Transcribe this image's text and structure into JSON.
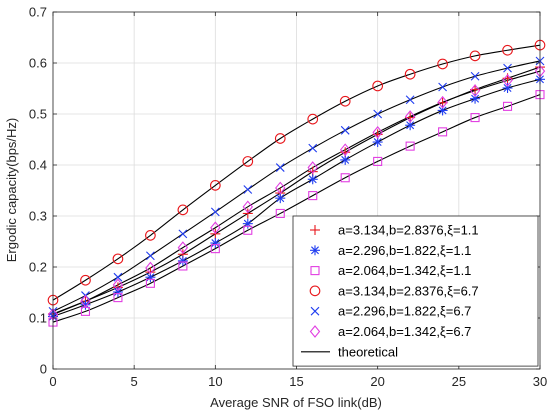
{
  "chart_data": {
    "type": "line",
    "xlabel": "Average SNR of FSO link(dB)",
    "ylabel": "Ergodic capacity(bps/Hz)",
    "xlim": [
      0,
      30
    ],
    "ylim": [
      0,
      0.7
    ],
    "xticks": [
      0,
      5,
      10,
      15,
      20,
      25,
      30
    ],
    "yticks": [
      0,
      0.1,
      0.2,
      0.3,
      0.4,
      0.5,
      0.6,
      0.7
    ],
    "grid": true,
    "legend_position": "bottom-right",
    "x": [
      0,
      2,
      4,
      6,
      8,
      10,
      12,
      14,
      16,
      18,
      20,
      22,
      24,
      26,
      28,
      30
    ],
    "series": [
      {
        "name": "a=3.134,b=2.8376,ξ=1.1",
        "marker": "plus",
        "color": "#e8161b",
        "values": [
          0.108,
          0.133,
          0.16,
          0.19,
          0.225,
          0.265,
          0.305,
          0.345,
          0.387,
          0.425,
          0.46,
          0.493,
          0.522,
          0.548,
          0.57,
          0.592
        ]
      },
      {
        "name": "a=2.296,b=1.822,ξ=1.1",
        "marker": "asterisk",
        "color": "#1f3cf0",
        "values": [
          0.103,
          0.126,
          0.151,
          0.18,
          0.212,
          0.247,
          0.285,
          0.335,
          0.372,
          0.41,
          0.445,
          0.478,
          0.507,
          0.53,
          0.551,
          0.568
        ]
      },
      {
        "name": "a=2.064,b=1.342,ξ=1.1",
        "marker": "square",
        "color": "#e23ee2",
        "values": [
          0.092,
          0.113,
          0.14,
          0.168,
          0.202,
          0.236,
          0.272,
          0.305,
          0.34,
          0.375,
          0.407,
          0.437,
          0.465,
          0.493,
          0.515,
          0.538
        ]
      },
      {
        "name": "a=3.134,b=2.8376,ξ=6.7",
        "marker": "circle",
        "color": "#e8161b",
        "values": [
          0.135,
          0.174,
          0.216,
          0.262,
          0.312,
          0.36,
          0.407,
          0.452,
          0.49,
          0.525,
          0.555,
          0.578,
          0.598,
          0.614,
          0.625,
          0.635
        ]
      },
      {
        "name": "a=2.296,b=1.822,ξ=6.7",
        "marker": "x",
        "color": "#1f3cf0",
        "values": [
          0.113,
          0.144,
          0.18,
          0.222,
          0.265,
          0.308,
          0.352,
          0.395,
          0.433,
          0.468,
          0.5,
          0.528,
          0.553,
          0.574,
          0.59,
          0.604
        ]
      },
      {
        "name": "a=2.064,b=1.342,ξ=6.7",
        "marker": "diamond",
        "color": "#e23ee2",
        "values": [
          0.107,
          0.133,
          0.165,
          0.198,
          0.238,
          0.277,
          0.318,
          0.355,
          0.395,
          0.43,
          0.464,
          0.495,
          0.523,
          0.546,
          0.566,
          0.584
        ]
      }
    ],
    "theoretical": {
      "name": "theoretical",
      "color": "#000000",
      "curves": [
        [
          0.108,
          0.133,
          0.16,
          0.19,
          0.225,
          0.265,
          0.305,
          0.345,
          0.387,
          0.425,
          0.46,
          0.493,
          0.522,
          0.548,
          0.57,
          0.592
        ],
        [
          0.103,
          0.126,
          0.151,
          0.18,
          0.212,
          0.247,
          0.285,
          0.335,
          0.372,
          0.41,
          0.445,
          0.478,
          0.507,
          0.53,
          0.551,
          0.568
        ],
        [
          0.092,
          0.113,
          0.14,
          0.168,
          0.202,
          0.236,
          0.272,
          0.305,
          0.34,
          0.375,
          0.407,
          0.437,
          0.465,
          0.493,
          0.515,
          0.538
        ],
        [
          0.135,
          0.174,
          0.216,
          0.262,
          0.312,
          0.36,
          0.407,
          0.452,
          0.49,
          0.525,
          0.555,
          0.578,
          0.598,
          0.614,
          0.625,
          0.635
        ],
        [
          0.113,
          0.144,
          0.18,
          0.222,
          0.265,
          0.308,
          0.352,
          0.395,
          0.433,
          0.468,
          0.5,
          0.528,
          0.553,
          0.574,
          0.59,
          0.604
        ],
        [
          0.107,
          0.133,
          0.165,
          0.198,
          0.238,
          0.277,
          0.318,
          0.355,
          0.395,
          0.43,
          0.464,
          0.495,
          0.523,
          0.546,
          0.566,
          0.584
        ]
      ]
    }
  }
}
